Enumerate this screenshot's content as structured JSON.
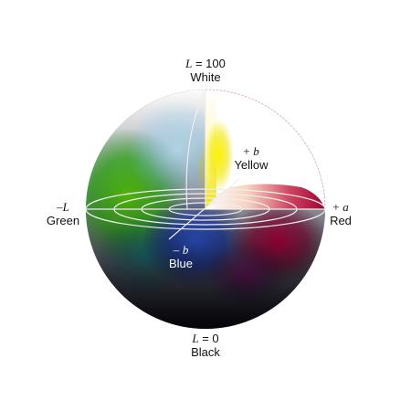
{
  "labels": {
    "top": {
      "symbol": "L",
      "value": "= 100",
      "name": "White"
    },
    "bottom": {
      "symbol": "L",
      "value": "= 0",
      "name": "Black"
    },
    "right": {
      "sign": "+",
      "symbol": "a",
      "name": "Red"
    },
    "left": {
      "sign": "–",
      "symbol": "L",
      "name": "Green"
    },
    "yellow": {
      "sign": "+",
      "symbol": "b",
      "name": "Yellow"
    },
    "blue": {
      "sign": "–",
      "symbol": "b",
      "name": "Blue"
    }
  },
  "colors": {
    "white": "#ffffff",
    "black": "#000000",
    "red": "#c8003c",
    "green": "#00a000",
    "yellow": "#f2ea00",
    "blue": "#1040c0",
    "grid": "#e8e8e8"
  }
}
